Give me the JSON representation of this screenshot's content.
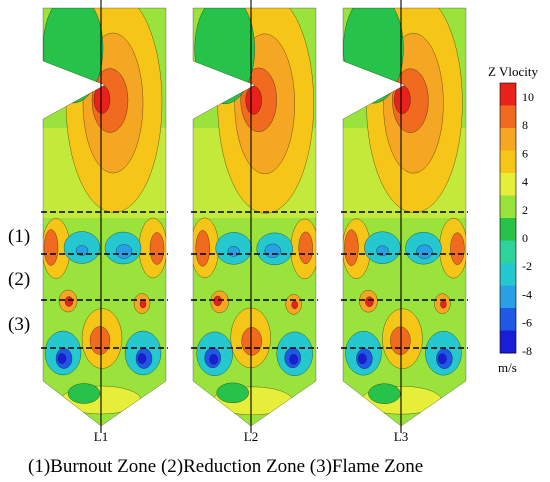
{
  "colorbar": {
    "title": "Z Vlocity",
    "unit": "m/s",
    "ticks": [
      "10",
      "8",
      "6",
      "4",
      "2",
      "0",
      "-2",
      "-4",
      "-6",
      "-8"
    ],
    "colors": [
      "#e8211a",
      "#f06a1f",
      "#f5a623",
      "#f5c518",
      "#e6ee3a",
      "#9ae23c",
      "#27c24a",
      "#2fd39a",
      "#26c8d0",
      "#29a0e6",
      "#2057e6",
      "#1a1dd6"
    ]
  },
  "zones": [
    {
      "label": "(1)",
      "name": "Burnout Zone"
    },
    {
      "label": "(2)",
      "name": "Reduction Zone"
    },
    {
      "label": "(3)",
      "name": "Flame Zone"
    }
  ],
  "panels": [
    {
      "label": "L1"
    },
    {
      "label": "L2"
    },
    {
      "label": "L3"
    }
  ],
  "caption": "(1)Burnout Zone (2)Reduction Zone (3)Flame Zone"
}
